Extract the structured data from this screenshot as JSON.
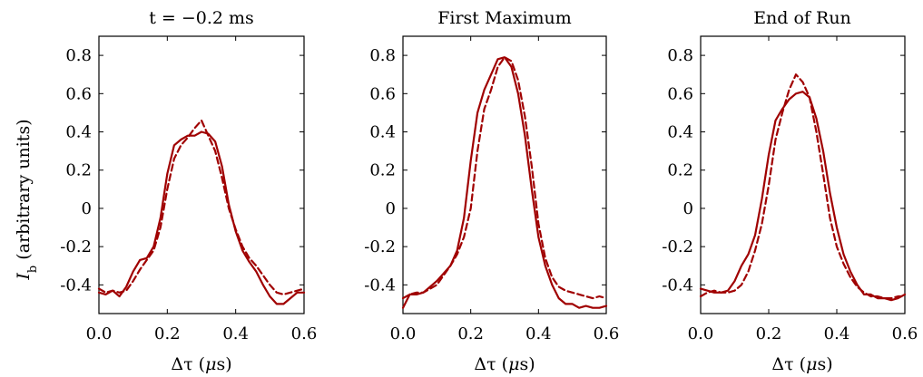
{
  "figure": {
    "ylabel": "I_b (arbitrary units)",
    "ylabel_main": "I",
    "ylabel_sub": "b",
    "ylabel_rest": " (arbitrary units)",
    "xlabel_prefix": "Δτ (",
    "xlabel_mu": "μ",
    "xlabel_suffix": "s)"
  },
  "chart_data": [
    {
      "type": "line",
      "title": "t = −0.2 ms",
      "xlabel": "Δτ (μs)",
      "ylabel": "I_b (arbitrary units)",
      "xlim": [
        0.0,
        0.6
      ],
      "ylim": [
        -0.55,
        0.9
      ],
      "xticks": [
        "0.0",
        "0.2",
        "0.4",
        "0.6"
      ],
      "yticks": [
        "-0.4",
        "-0.2",
        "0",
        "0.2",
        "0.4",
        "0.6",
        "0.8"
      ],
      "grid": false,
      "color": "#a00000",
      "series": [
        {
          "style": "solid",
          "x": [
            0.0,
            0.02,
            0.04,
            0.06,
            0.08,
            0.1,
            0.12,
            0.14,
            0.16,
            0.18,
            0.2,
            0.22,
            0.24,
            0.26,
            0.28,
            0.3,
            0.32,
            0.34,
            0.36,
            0.38,
            0.4,
            0.42,
            0.44,
            0.46,
            0.48,
            0.5,
            0.52,
            0.54,
            0.56,
            0.58,
            0.6
          ],
          "y": [
            -0.44,
            -0.45,
            -0.43,
            -0.46,
            -0.41,
            -0.33,
            -0.27,
            -0.26,
            -0.2,
            -0.05,
            0.18,
            0.33,
            0.36,
            0.38,
            0.38,
            0.4,
            0.39,
            0.35,
            0.22,
            0.02,
            -0.12,
            -0.22,
            -0.28,
            -0.33,
            -0.4,
            -0.46,
            -0.5,
            -0.5,
            -0.47,
            -0.44,
            -0.44
          ]
        },
        {
          "style": "dashed",
          "x": [
            0.0,
            0.02,
            0.04,
            0.06,
            0.08,
            0.1,
            0.12,
            0.14,
            0.16,
            0.18,
            0.2,
            0.22,
            0.24,
            0.26,
            0.28,
            0.3,
            0.32,
            0.34,
            0.36,
            0.38,
            0.4,
            0.42,
            0.44,
            0.46,
            0.48,
            0.5,
            0.52,
            0.54,
            0.56,
            0.58,
            0.6
          ],
          "y": [
            -0.42,
            -0.44,
            -0.43,
            -0.44,
            -0.43,
            -0.38,
            -0.32,
            -0.27,
            -0.22,
            -0.1,
            0.1,
            0.26,
            0.33,
            0.37,
            0.42,
            0.46,
            0.38,
            0.3,
            0.16,
            0.0,
            -0.11,
            -0.2,
            -0.26,
            -0.3,
            -0.35,
            -0.4,
            -0.44,
            -0.45,
            -0.44,
            -0.43,
            -0.42
          ]
        }
      ]
    },
    {
      "type": "line",
      "title": "First Maximum",
      "xlabel": "Δτ (μs)",
      "xlim": [
        0.0,
        0.6
      ],
      "ylim": [
        -0.55,
        0.9
      ],
      "xticks": [
        "0.0",
        "0.2",
        "0.4",
        "0.6"
      ],
      "yticks": [
        "-0.4",
        "-0.2",
        "0",
        "0.2",
        "0.4",
        "0.6",
        "0.8"
      ],
      "grid": false,
      "color": "#a00000",
      "series": [
        {
          "style": "solid",
          "x": [
            0.0,
            0.02,
            0.04,
            0.06,
            0.08,
            0.1,
            0.12,
            0.14,
            0.16,
            0.18,
            0.2,
            0.22,
            0.24,
            0.26,
            0.28,
            0.3,
            0.32,
            0.34,
            0.36,
            0.38,
            0.4,
            0.42,
            0.44,
            0.46,
            0.48,
            0.5,
            0.52,
            0.54,
            0.56,
            0.58,
            0.6
          ],
          "y": [
            -0.52,
            -0.45,
            -0.45,
            -0.44,
            -0.41,
            -0.38,
            -0.34,
            -0.3,
            -0.22,
            -0.05,
            0.25,
            0.5,
            0.62,
            0.7,
            0.78,
            0.79,
            0.74,
            0.6,
            0.38,
            0.1,
            -0.15,
            -0.3,
            -0.4,
            -0.47,
            -0.5,
            -0.5,
            -0.52,
            -0.51,
            -0.52,
            -0.52,
            -0.51
          ]
        },
        {
          "style": "dashed",
          "x": [
            0.0,
            0.02,
            0.04,
            0.06,
            0.08,
            0.1,
            0.12,
            0.14,
            0.16,
            0.18,
            0.2,
            0.22,
            0.24,
            0.26,
            0.28,
            0.3,
            0.32,
            0.34,
            0.36,
            0.38,
            0.4,
            0.42,
            0.44,
            0.46,
            0.48,
            0.5,
            0.52,
            0.54,
            0.56,
            0.58,
            0.6
          ],
          "y": [
            -0.47,
            -0.45,
            -0.44,
            -0.44,
            -0.42,
            -0.4,
            -0.35,
            -0.3,
            -0.24,
            -0.15,
            0.0,
            0.3,
            0.52,
            0.62,
            0.74,
            0.79,
            0.77,
            0.67,
            0.48,
            0.22,
            -0.08,
            -0.26,
            -0.36,
            -0.41,
            -0.43,
            -0.44,
            -0.45,
            -0.46,
            -0.47,
            -0.46,
            -0.47
          ]
        }
      ]
    },
    {
      "type": "line",
      "title": "End of Run",
      "xlabel": "Δτ (μs)",
      "xlim": [
        0.0,
        0.6
      ],
      "ylim": [
        -0.55,
        0.9
      ],
      "xticks": [
        "0.0",
        "0.2",
        "0.4",
        "0.6"
      ],
      "yticks": [
        "-0.4",
        "-0.2",
        "0",
        "0.2",
        "0.4",
        "0.6",
        "0.8"
      ],
      "grid": false,
      "color": "#a00000",
      "series": [
        {
          "style": "solid",
          "x": [
            0.0,
            0.02,
            0.04,
            0.06,
            0.08,
            0.1,
            0.12,
            0.14,
            0.16,
            0.18,
            0.2,
            0.22,
            0.24,
            0.26,
            0.28,
            0.3,
            0.32,
            0.34,
            0.36,
            0.38,
            0.4,
            0.42,
            0.44,
            0.46,
            0.48,
            0.5,
            0.52,
            0.54,
            0.56,
            0.58,
            0.6
          ],
          "y": [
            -0.42,
            -0.43,
            -0.44,
            -0.44,
            -0.43,
            -0.38,
            -0.3,
            -0.24,
            -0.14,
            0.05,
            0.28,
            0.46,
            0.52,
            0.57,
            0.6,
            0.61,
            0.58,
            0.47,
            0.3,
            0.08,
            -0.1,
            -0.24,
            -0.33,
            -0.4,
            -0.45,
            -0.45,
            -0.47,
            -0.47,
            -0.48,
            -0.47,
            -0.45
          ]
        },
        {
          "style": "dashed",
          "x": [
            0.0,
            0.02,
            0.04,
            0.06,
            0.08,
            0.1,
            0.12,
            0.14,
            0.16,
            0.18,
            0.2,
            0.22,
            0.24,
            0.26,
            0.28,
            0.3,
            0.32,
            0.34,
            0.36,
            0.38,
            0.4,
            0.42,
            0.44,
            0.46,
            0.48,
            0.5,
            0.52,
            0.54,
            0.56,
            0.58,
            0.6
          ],
          "y": [
            -0.46,
            -0.44,
            -0.43,
            -0.44,
            -0.44,
            -0.43,
            -0.4,
            -0.33,
            -0.22,
            -0.08,
            0.12,
            0.36,
            0.5,
            0.62,
            0.7,
            0.66,
            0.58,
            0.4,
            0.18,
            -0.05,
            -0.2,
            -0.29,
            -0.36,
            -0.41,
            -0.44,
            -0.46,
            -0.46,
            -0.47,
            -0.47,
            -0.46,
            -0.46
          ]
        }
      ]
    }
  ]
}
